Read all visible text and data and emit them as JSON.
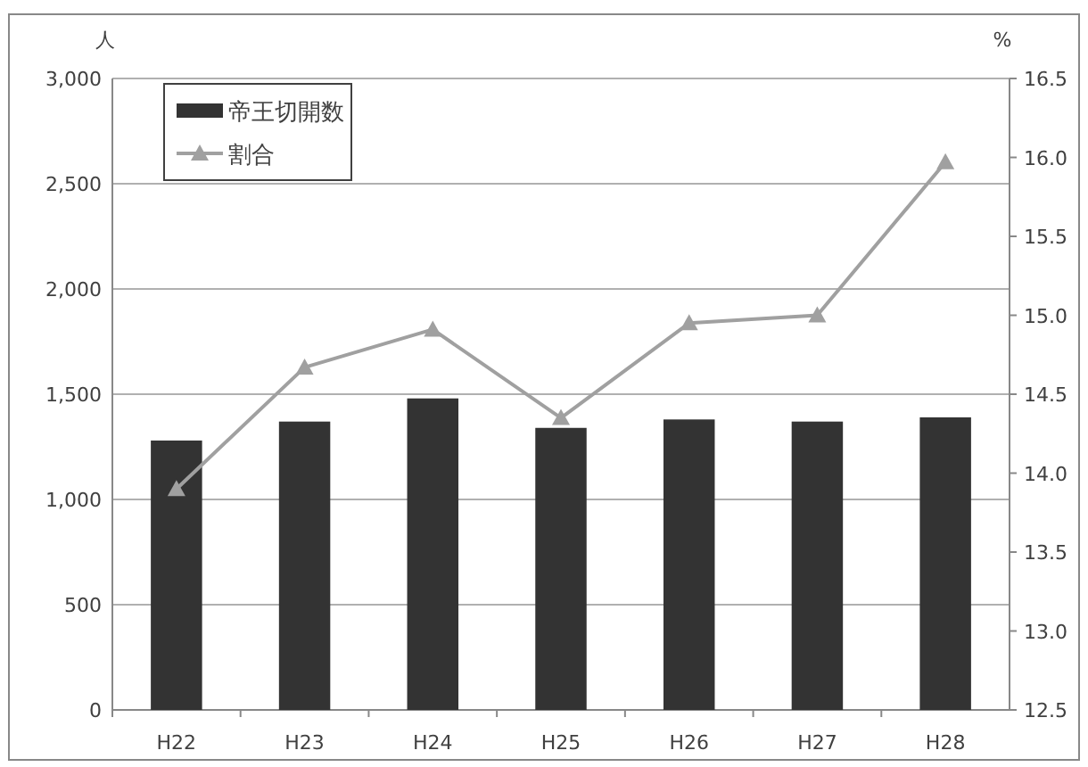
{
  "chart_data": {
    "type": "bar",
    "categories": [
      "H22",
      "H23",
      "H24",
      "H25",
      "H26",
      "H27",
      "H28"
    ],
    "ylabel": "人",
    "y2label": "%",
    "series": [
      {
        "name": "帝王切開数",
        "color": "#333333",
        "values": [
          1280,
          1370,
          1480,
          1340,
          1380,
          1370,
          1390
        ]
      },
      {
        "name": "割合",
        "type": "line",
        "axis": "y2",
        "color": "#a0a0a0",
        "marker": "triangle",
        "values": [
          13.9,
          14.67,
          14.91,
          14.35,
          14.95,
          15.0,
          15.97
        ]
      }
    ],
    "ylim": [
      0,
      3000
    ],
    "yticks": [
      0,
      500,
      {
        "value": 1000,
        "label": "1,000"
      },
      {
        "value": 1500,
        "label": "1,500"
      },
      {
        "value": 2000,
        "label": "2,000"
      },
      {
        "value": 2500,
        "label": "2,500"
      },
      {
        "value": 3000,
        "label": "3,000"
      }
    ],
    "y2lim": [
      12.5,
      16.5
    ],
    "y2ticks": [
      {
        "value": 12.5,
        "label": "12.5"
      },
      {
        "value": 13,
        "label": "13.0"
      },
      {
        "value": 13.5,
        "label": "13.5"
      },
      {
        "value": 14,
        "label": "14.0"
      },
      {
        "value": 14.5,
        "label": "14.5"
      },
      {
        "value": 15,
        "label": "15.0"
      },
      {
        "value": 15.5,
        "label": "15.5"
      },
      {
        "value": 16,
        "label": "16.0"
      },
      {
        "value": 16.5,
        "label": "16.5"
      }
    ],
    "grid": "y",
    "legend": "top left"
  }
}
